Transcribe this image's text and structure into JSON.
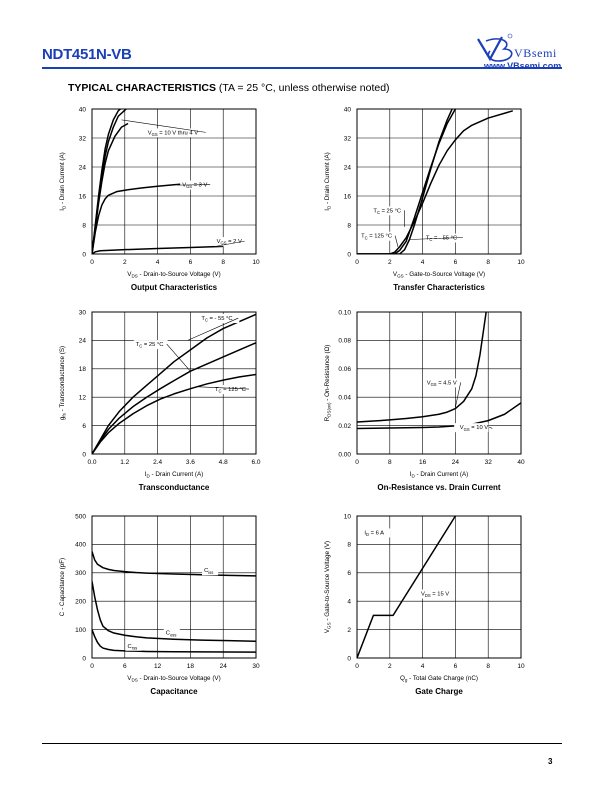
{
  "header": {
    "part_number": "NDT451N-VB",
    "brand_name": "VBsemi",
    "brand_url": "www.VBsemi.com"
  },
  "section": {
    "title": "TYPICAL CHARACTERISTICS",
    "condition": "(TA = 25 °C, unless otherwise noted)"
  },
  "footer": {
    "page_number": "3"
  },
  "chart_data": [
    {
      "id": "output",
      "type": "line",
      "title": "Output Characteristics",
      "xlabel": "VDS - Drain-to-Source Voltage (V)",
      "ylabel": "ID - Drain Current (A)",
      "xlim": [
        0,
        10
      ],
      "ylim": [
        0,
        40
      ],
      "xticks": [
        "0",
        "2",
        "4",
        "6",
        "8",
        "10"
      ],
      "yticks": [
        "0",
        "8",
        "16",
        "24",
        "32",
        "40"
      ],
      "series": [
        {
          "name": "VGS = 10 V thru 4 V (a)",
          "x": [
            0,
            0.2,
            0.4,
            0.6,
            0.8,
            1.0,
            1.3,
            1.6,
            2.0
          ],
          "y": [
            0,
            8,
            16,
            23,
            29,
            33,
            37,
            39.5,
            41
          ]
        },
        {
          "name": "VGS = 10 V thru 4 V (b)",
          "x": [
            0,
            0.2,
            0.4,
            0.6,
            0.8,
            1.0,
            1.3,
            1.6,
            2.2
          ],
          "y": [
            0,
            7.5,
            15,
            21.5,
            27,
            31,
            35,
            38,
            40.5
          ]
        },
        {
          "name": "VGS = 10 V thru 4 V (c)",
          "x": [
            0,
            0.2,
            0.4,
            0.6,
            0.8,
            1.0,
            1.4,
            1.8,
            2.2
          ],
          "y": [
            0,
            7,
            14,
            20,
            25,
            28.5,
            32.5,
            35,
            36
          ]
        },
        {
          "name": "VGS = 3 V",
          "x": [
            0,
            0.2,
            0.4,
            0.6,
            0.8,
            1.0,
            1.5,
            2,
            3,
            4,
            5,
            6,
            7
          ],
          "y": [
            0,
            6,
            10.5,
            13.5,
            15.2,
            16.2,
            17.2,
            17.6,
            18.2,
            18.7,
            19.1,
            19.5,
            19.9
          ]
        },
        {
          "name": "VGS = 2 V",
          "x": [
            0,
            0.2,
            0.5,
            1,
            2,
            4,
            6,
            8
          ],
          "y": [
            0,
            0.6,
            0.9,
            1.0,
            1.2,
            1.5,
            1.8,
            2.1
          ]
        }
      ],
      "annotations": [
        "VGS = 10 V thru 4 V",
        "VGS = 3 V",
        "VGS = 2 V"
      ]
    },
    {
      "id": "transfer",
      "type": "line",
      "title": "Transfer Characteristics",
      "xlabel": "VGS - Gate-to-Source Voltage (V)",
      "ylabel": "ID - Drain Current (A)",
      "xlim": [
        0,
        10
      ],
      "ylim": [
        0,
        40
      ],
      "xticks": [
        "0",
        "2",
        "4",
        "6",
        "8",
        "10"
      ],
      "yticks": [
        "0",
        "8",
        "16",
        "24",
        "32",
        "40"
      ],
      "series": [
        {
          "name": "TC = 125 °C",
          "x": [
            0,
            2.0,
            2.3,
            2.6,
            3.0,
            3.5,
            4,
            4.5,
            5,
            5.5,
            6,
            6.5,
            7,
            8,
            9.5
          ],
          "y": [
            0,
            0,
            0.5,
            2,
            4.5,
            9,
            14,
            19.5,
            24.5,
            28.5,
            31.5,
            34,
            35.5,
            37.5,
            39.5
          ]
        },
        {
          "name": "TC = 25 °C",
          "x": [
            0,
            2.3,
            2.6,
            3.0,
            3.5,
            4,
            4.5,
            5,
            5.5,
            6,
            6.5
          ],
          "y": [
            0,
            0,
            1,
            3.5,
            10,
            17,
            24,
            30.5,
            36,
            40,
            42
          ]
        },
        {
          "name": "TC = - 55 °C",
          "x": [
            0,
            2.6,
            2.9,
            3.2,
            3.5,
            4,
            4.5,
            5,
            5.5,
            6
          ],
          "y": [
            0,
            0,
            1.2,
            4,
            8,
            15.5,
            23.5,
            31,
            37,
            42
          ]
        }
      ],
      "annotations": [
        "TC = 25 °C",
        "TC = 125 °C",
        "TC = - 55 °C"
      ]
    },
    {
      "id": "transconductance",
      "type": "line",
      "title": "Transconductance",
      "xlabel": "ID - Drain Current (A)",
      "ylabel": "gfs - Transconductance (S)",
      "xlim": [
        0,
        6
      ],
      "ylim": [
        0,
        30
      ],
      "xticks": [
        "0.0",
        "1.2",
        "2.4",
        "3.6",
        "4.8",
        "6.0"
      ],
      "yticks": [
        "0",
        "6",
        "12",
        "18",
        "24",
        "30"
      ],
      "series": [
        {
          "name": "TC = - 55 °C",
          "x": [
            0,
            0.3,
            0.6,
            1,
            1.5,
            2,
            2.5,
            3,
            3.6,
            4.2,
            4.8,
            5.4,
            6
          ],
          "y": [
            0,
            3,
            6,
            9,
            12,
            14.5,
            17,
            19.5,
            22,
            24.5,
            26.5,
            28,
            29.5
          ]
        },
        {
          "name": "TC = 25 °C",
          "x": [
            0,
            0.3,
            0.6,
            1,
            1.5,
            2,
            2.5,
            3,
            3.6,
            4.2,
            4.8,
            5.4,
            6
          ],
          "y": [
            0,
            2.8,
            5.2,
            7.6,
            10,
            12,
            13.8,
            15.5,
            17.5,
            19,
            20.5,
            22,
            23.5
          ]
        },
        {
          "name": "TC = 125 °C",
          "x": [
            0,
            0.3,
            0.6,
            1,
            1.5,
            2,
            2.5,
            3,
            3.6,
            4.2,
            4.8,
            5.4,
            6
          ],
          "y": [
            0,
            2.5,
            4.5,
            6.5,
            8.5,
            10.2,
            11.6,
            12.7,
            13.8,
            14.8,
            15.6,
            16.3,
            16.8
          ]
        }
      ],
      "annotations": [
        "TC = - 55 °C",
        "TC = 25 °C",
        "TC = 125 °C"
      ]
    },
    {
      "id": "onres",
      "type": "line",
      "title": "On-Resistance vs. Drain Current",
      "xlabel": "ID - Drain Current (A)",
      "ylabel": "RDS(on) - On-Resistance (Ω)",
      "xlim": [
        0,
        40
      ],
      "ylim": [
        0,
        0.1
      ],
      "xticks": [
        "0",
        "8",
        "16",
        "24",
        "32",
        "40"
      ],
      "yticks": [
        "0.00",
        "0.02",
        "0.04",
        "0.06",
        "0.08",
        "0.10"
      ],
      "series": [
        {
          "name": "VGS = 4.5 V",
          "x": [
            0,
            4,
            8,
            12,
            16,
            20,
            22,
            24,
            26,
            28,
            29,
            30,
            31,
            31.5
          ],
          "y": [
            0.0225,
            0.0232,
            0.024,
            0.025,
            0.0262,
            0.028,
            0.0295,
            0.032,
            0.037,
            0.046,
            0.055,
            0.07,
            0.09,
            0.1
          ]
        },
        {
          "name": "VGS = 10 V",
          "x": [
            0,
            8,
            16,
            20,
            24,
            28,
            32,
            36,
            40
          ],
          "y": [
            0.018,
            0.0183,
            0.0187,
            0.019,
            0.0198,
            0.021,
            0.0235,
            0.028,
            0.036
          ]
        }
      ],
      "annotations": [
        "VGS = 4.5 V",
        "VGS = 10 V"
      ]
    },
    {
      "id": "capacitance",
      "type": "line",
      "title": "Capacitance",
      "xlabel": "VDS - Drain-to-Source Voltage (V)",
      "ylabel": "C - Capacitance (pF)",
      "xlim": [
        0,
        30
      ],
      "ylim": [
        0,
        500
      ],
      "xticks": [
        "0",
        "6",
        "12",
        "18",
        "24",
        "30"
      ],
      "yticks": [
        "0",
        "100",
        "200",
        "300",
        "400",
        "500"
      ],
      "series": [
        {
          "name": "Ciss",
          "x": [
            0,
            0.5,
            1,
            2,
            3,
            4,
            6,
            8,
            10,
            15,
            20,
            25,
            30
          ],
          "y": [
            375,
            345,
            330,
            318,
            312,
            308,
            304,
            301,
            299,
            296,
            293,
            291,
            289
          ]
        },
        {
          "name": "Coss",
          "x": [
            0,
            0.5,
            1,
            1.5,
            2,
            3,
            4,
            6,
            8,
            10,
            15,
            20,
            25,
            30
          ],
          "y": [
            270,
            215,
            170,
            135,
            112,
            96,
            88,
            80,
            75,
            71,
            66,
            63,
            61,
            59
          ]
        },
        {
          "name": "Crss",
          "x": [
            0,
            0.5,
            1,
            1.5,
            2,
            3,
            4,
            6,
            8,
            10,
            15,
            20,
            25,
            30
          ],
          "y": [
            100,
            75,
            55,
            42,
            35,
            30,
            27,
            25,
            24,
            23,
            22,
            21.5,
            21,
            20.5
          ]
        }
      ],
      "annotations": [
        "Ciss",
        "Coss",
        "Crss"
      ]
    },
    {
      "id": "gatecharge",
      "type": "line",
      "title": "Gate Charge",
      "xlabel": "Qg - Total Gate Charge (nC)",
      "ylabel": "VGS - Gate-to-Source Voltage (V)",
      "xlim": [
        0,
        10
      ],
      "ylim": [
        0,
        10
      ],
      "xticks": [
        "0",
        "2",
        "4",
        "6",
        "8",
        "10"
      ],
      "yticks": [
        "0",
        "2",
        "4",
        "6",
        "8",
        "10"
      ],
      "series": [
        {
          "name": "VDS = 15 V",
          "x": [
            0,
            1.0,
            2.2,
            6.0
          ],
          "y": [
            0,
            3,
            3,
            10
          ]
        }
      ],
      "annotations": [
        "ID = 6 A",
        "VDS = 15 V"
      ]
    }
  ]
}
